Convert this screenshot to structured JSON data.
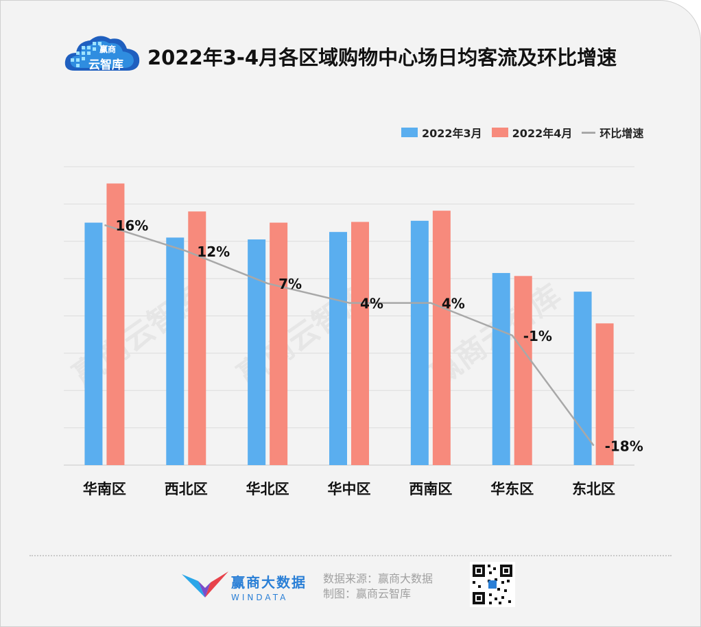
{
  "header": {
    "title": "2022年3-4月各区域购物中心场日均客流及环比增速",
    "logo_small": "赢商",
    "logo_big": "云智库"
  },
  "watermark": "赢商云智库",
  "legend": {
    "items": [
      {
        "label": "2022年3月",
        "color": "#5aaeef"
      },
      {
        "label": "2022年4月",
        "color": "#f78a7c"
      },
      {
        "label": "环比增速",
        "color": "#a8a8a8"
      }
    ]
  },
  "chart_data": {
    "type": "bar",
    "categories": [
      "华南区",
      "西北区",
      "华北区",
      "华中区",
      "西南区",
      "华东区",
      "东北区"
    ],
    "series": [
      {
        "name": "2022年3月",
        "type": "bar",
        "color": "#5aaeef",
        "values": [
          6.5,
          6.1,
          6.05,
          6.25,
          6.55,
          5.15,
          4.65
        ]
      },
      {
        "name": "2022年4月",
        "type": "bar",
        "color": "#f78a7c",
        "values": [
          7.55,
          6.8,
          6.5,
          6.52,
          6.82,
          5.07,
          3.8
        ]
      },
      {
        "name": "环比增速",
        "type": "line",
        "color": "#a8a8a8",
        "values": [
          16,
          12,
          7,
          4,
          4,
          -1,
          -18
        ],
        "labels": [
          "16%",
          "12%",
          "7%",
          "4%",
          "4%",
          "-1%",
          "-18%"
        ]
      }
    ],
    "ylim": [
      0,
      8
    ],
    "y2lim": [
      -21,
      25
    ],
    "grid": true
  },
  "footer": {
    "brand_cn": "赢商大数据",
    "brand_en": "WINDATA",
    "source_line1": "数据来源：赢商大数据",
    "source_line2": "制图：赢商云智库"
  }
}
